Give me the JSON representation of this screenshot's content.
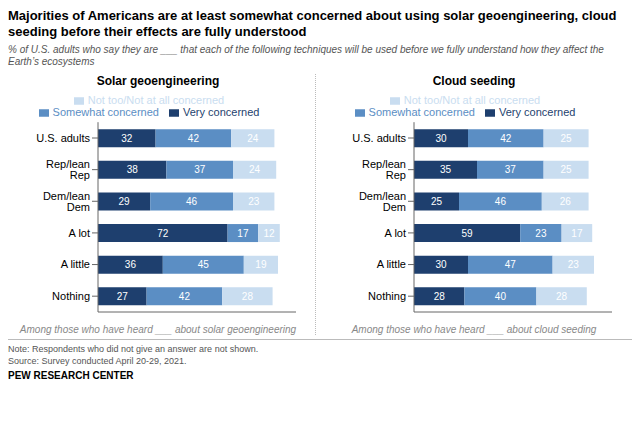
{
  "title": "Majorities of Americans are at least somewhat concerned about using solar geoengineering, cloud seeding before their effects are fully understood",
  "subtitle": "% of U.S. adults who say they are ___ that each of the following techniques will be used before we fully understand how they affect the Earth’s ecosystems",
  "annotations": [
    "Note: Respondents who did not give an answer are not shown.",
    "Source: Survey conducted April 20-29, 2021.",
    "PEW RESEARCH CENTER"
  ],
  "chart_data": [
    {
      "type": "bar",
      "title": "Solar geoengineering",
      "orientation": "horizontal",
      "stacked": true,
      "data_labels": true,
      "legend": "top",
      "grid": false,
      "tick_labels": false,
      "xlim": [
        0,
        110
      ],
      "annotations": [
        "Among those who have heard ___ about solar geoengineering"
      ],
      "categories": [
        "U.S. adults",
        "Rep/lean Rep",
        "Dem/lean Dem",
        "A lot",
        "A little",
        "Nothing"
      ],
      "series": [
        {
          "name": "Very concerned",
          "color": "#1e3f6e",
          "values": [
            32,
            38,
            29,
            72,
            36,
            27
          ]
        },
        {
          "name": "Somewhat concerned",
          "color": "#5b8ec4",
          "values": [
            42,
            37,
            46,
            17,
            45,
            42
          ]
        },
        {
          "name": "Not too/Not at all concerned",
          "color": "#c9ddf0",
          "values": [
            24,
            24,
            23,
            12,
            19,
            28
          ]
        }
      ]
    },
    {
      "type": "bar",
      "title": "Cloud seeding",
      "orientation": "horizontal",
      "stacked": true,
      "data_labels": true,
      "legend": "top",
      "grid": false,
      "tick_labels": false,
      "xlim": [
        0,
        110
      ],
      "annotations": [
        "Among those who have heard ___ about cloud seeding"
      ],
      "categories": [
        "U.S. adults",
        "Rep/lean Rep",
        "Dem/lean Dem",
        "A lot",
        "A little",
        "Nothing"
      ],
      "series": [
        {
          "name": "Very concerned",
          "color": "#1e3f6e",
          "values": [
            30,
            35,
            25,
            59,
            30,
            28
          ]
        },
        {
          "name": "Somewhat concerned",
          "color": "#5b8ec4",
          "values": [
            42,
            37,
            46,
            23,
            47,
            40
          ]
        },
        {
          "name": "Not too/Not at all concerned",
          "color": "#c9ddf0",
          "values": [
            25,
            25,
            26,
            17,
            23,
            28
          ]
        }
      ]
    }
  ]
}
